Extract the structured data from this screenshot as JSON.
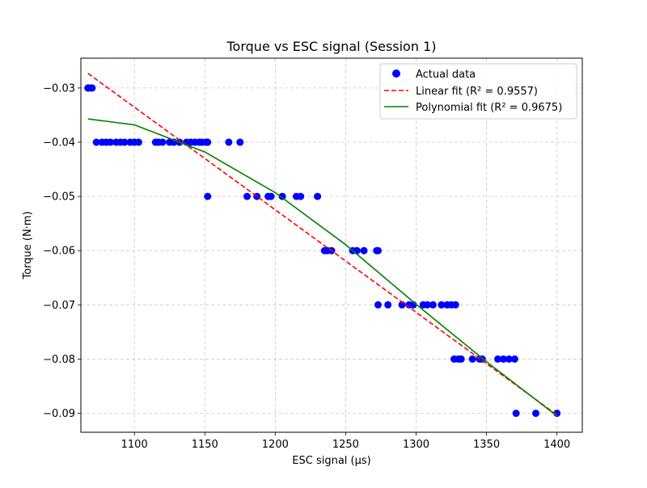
{
  "chart_data": {
    "type": "scatter",
    "title": "Torque vs ESC signal (Session 1)",
    "xlabel": "ESC signal (µs)",
    "ylabel": "Torque (N·m)",
    "xlim": [
      1062,
      1418
    ],
    "ylim": [
      -0.0935,
      -0.0245
    ],
    "xticks": [
      1100,
      1150,
      1200,
      1250,
      1300,
      1350,
      1400
    ],
    "yticks": [
      -0.09,
      -0.08,
      -0.07,
      -0.06,
      -0.05,
      -0.04,
      -0.03
    ],
    "xtick_labels": [
      "1100",
      "1150",
      "1200",
      "1250",
      "1300",
      "1350",
      "1400"
    ],
    "ytick_labels": [
      "−0.09",
      "−0.08",
      "−0.07",
      "−0.06",
      "−0.05",
      "−0.04",
      "−0.03"
    ],
    "grid": true,
    "legend_position": "top-right",
    "colors": {
      "scatter": "#0000ff",
      "linear": "#ff0000",
      "poly": "#008000"
    },
    "series": [
      {
        "name": "Actual data",
        "kind": "scatter",
        "x": [
          1067,
          1068,
          1070,
          1073,
          1077,
          1080,
          1083,
          1087,
          1090,
          1093,
          1097,
          1100,
          1103,
          1115,
          1117,
          1120,
          1125,
          1128,
          1132,
          1137,
          1140,
          1143,
          1146,
          1148,
          1151,
          1152,
          1167,
          1175,
          1152,
          1180,
          1187,
          1195,
          1197,
          1205,
          1215,
          1218,
          1230,
          1235,
          1237,
          1240,
          1255,
          1258,
          1263,
          1272,
          1273,
          1273,
          1280,
          1290,
          1295,
          1298,
          1305,
          1308,
          1312,
          1318,
          1322,
          1325,
          1328,
          1327,
          1330,
          1332,
          1340,
          1345,
          1347,
          1358,
          1362,
          1366,
          1370,
          1371,
          1385,
          1400
        ],
        "y": [
          -0.03,
          -0.03,
          -0.03,
          -0.04,
          -0.04,
          -0.04,
          -0.04,
          -0.04,
          -0.04,
          -0.04,
          -0.04,
          -0.04,
          -0.04,
          -0.04,
          -0.04,
          -0.04,
          -0.04,
          -0.04,
          -0.04,
          -0.04,
          -0.04,
          -0.04,
          -0.04,
          -0.04,
          -0.04,
          -0.04,
          -0.04,
          -0.04,
          -0.05,
          -0.05,
          -0.05,
          -0.05,
          -0.05,
          -0.05,
          -0.05,
          -0.05,
          -0.05,
          -0.06,
          -0.06,
          -0.06,
          -0.06,
          -0.06,
          -0.06,
          -0.06,
          -0.06,
          -0.07,
          -0.07,
          -0.07,
          -0.07,
          -0.07,
          -0.07,
          -0.07,
          -0.07,
          -0.07,
          -0.07,
          -0.07,
          -0.07,
          -0.08,
          -0.08,
          -0.08,
          -0.08,
          -0.08,
          -0.08,
          -0.08,
          -0.08,
          -0.08,
          -0.08,
          -0.09,
          -0.09,
          -0.09
        ]
      },
      {
        "name": "Linear fit (R² = 0.9557)",
        "kind": "line",
        "style": "dashed",
        "x": [
          1067,
          1400
        ],
        "y": [
          -0.0273,
          -0.0903
        ]
      },
      {
        "name": "Polynomial fit (R² = 0.9675)",
        "kind": "line",
        "style": "solid",
        "x": [
          1067,
          1100,
          1150,
          1200,
          1250,
          1300,
          1350,
          1400
        ],
        "y": [
          -0.0357,
          -0.0368,
          -0.0418,
          -0.0493,
          -0.0589,
          -0.0699,
          -0.0805,
          -0.0905
        ]
      }
    ]
  }
}
